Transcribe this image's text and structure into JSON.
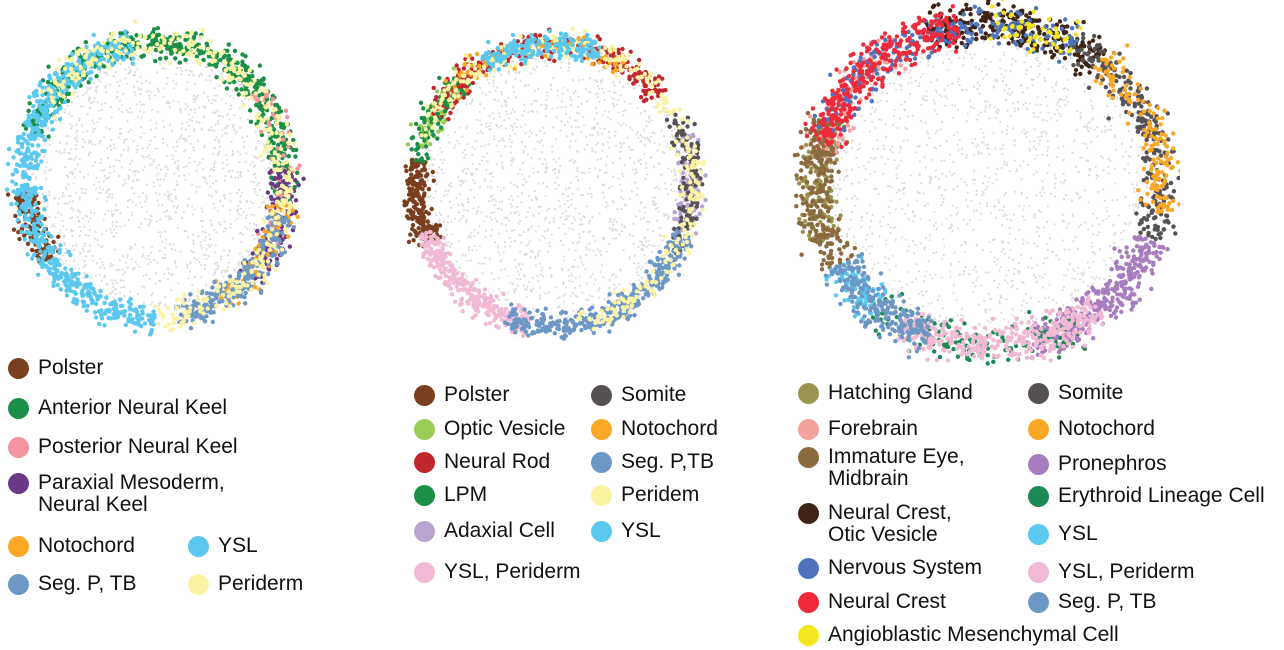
{
  "chart_data": [
    {
      "type": "scatter",
      "title": "",
      "xlabel": "",
      "ylabel": "",
      "legend_position": "below",
      "background_color": "#dcdcdc",
      "legend": [
        {
          "label": "Polster",
          "color": "#7a3f1e"
        },
        {
          "label": "Anterior Neural Keel",
          "color": "#1b8f45"
        },
        {
          "label": "Posterior Neural Keel",
          "color": "#f3949f"
        },
        {
          "label": "Paraxial Mesoderm,\nNeural Keel",
          "color": "#6a3a86"
        },
        {
          "label": "Notochord",
          "color": "#f9a825"
        },
        {
          "label": "YSL",
          "color": "#5ac8ef"
        },
        {
          "label": "Seg. P, TB",
          "color": "#6d98c6"
        },
        {
          "label": "Periderm",
          "color": "#fbf3a4"
        }
      ],
      "clusters": [
        {
          "label": "Polster",
          "arc": [
            145,
            175
          ],
          "weight": 0.5
        },
        {
          "label": "Anterior Neural Keel",
          "arc": [
            -160,
            10
          ],
          "weight": 2.2
        },
        {
          "label": "Posterior Neural Keel",
          "arc": [
            -40,
            40
          ],
          "weight": 0.3
        },
        {
          "label": "Paraxial Mesoderm,\nNeural Keel",
          "arc": [
            -5,
            45
          ],
          "weight": 0.6
        },
        {
          "label": "Notochord",
          "arc": [
            10,
            60
          ],
          "weight": 0.3
        },
        {
          "label": "YSL",
          "arc": [
            90,
            260
          ],
          "weight": 2.6
        },
        {
          "label": "Seg. P, TB",
          "arc": [
            15,
            80
          ],
          "weight": 0.9
        },
        {
          "label": "Periderm",
          "arc": [
            -150,
            90
          ],
          "weight": 1.4
        }
      ]
    },
    {
      "type": "scatter",
      "title": "",
      "xlabel": "",
      "ylabel": "",
      "legend_position": "below",
      "background_color": "#dcdcdc",
      "legend": [
        {
          "label": "Polster",
          "color": "#7a3f1e"
        },
        {
          "label": "Optic Vesicle",
          "color": "#9bcb57"
        },
        {
          "label": "Neural Rod",
          "color": "#c0272d"
        },
        {
          "label": "LPM",
          "color": "#1b8f45"
        },
        {
          "label": "Adaxial Cell",
          "color": "#b9a3d1"
        },
        {
          "label": "YSL, Periderm",
          "color": "#f1b9d3"
        },
        {
          "label": "Somite",
          "color": "#555155"
        },
        {
          "label": "Notochord",
          "color": "#f9a825"
        },
        {
          "label": "Seg. P,TB",
          "color": "#6d98c6"
        },
        {
          "label": "Peridem",
          "color": "#fbf3a4"
        },
        {
          "label": "YSL",
          "color": "#5ac8ef"
        }
      ],
      "clusters": [
        {
          "label": "Polster",
          "arc": [
            155,
            190
          ],
          "weight": 0.8
        },
        {
          "label": "Optic Vesicle",
          "arc": [
            195,
            230
          ],
          "weight": 0.3
        },
        {
          "label": "Neural Rod",
          "arc": [
            -150,
            -40
          ],
          "weight": 1.4
        },
        {
          "label": "LPM",
          "arc": [
            -170,
            -130
          ],
          "weight": 0.3
        },
        {
          "label": "Adaxial Cell",
          "arc": [
            -20,
            20
          ],
          "weight": 0.4
        },
        {
          "label": "YSL, Periderm",
          "arc": [
            100,
            160
          ],
          "weight": 1.1
        },
        {
          "label": "Somite",
          "arc": [
            -30,
            30
          ],
          "weight": 0.5
        },
        {
          "label": "Notochord",
          "arc": [
            -140,
            -60
          ],
          "weight": 0.4
        },
        {
          "label": "Seg. P,TB",
          "arc": [
            20,
            110
          ],
          "weight": 1.4
        },
        {
          "label": "Peridem",
          "arc": [
            -160,
            80
          ],
          "weight": 1.3
        },
        {
          "label": "YSL",
          "arc": [
            -120,
            -70
          ],
          "weight": 0.7
        }
      ]
    },
    {
      "type": "scatter",
      "title": "",
      "xlabel": "",
      "ylabel": "",
      "legend_position": "below",
      "background_color": "#dcdcdc",
      "legend": [
        {
          "label": "Hatching Gland",
          "color": "#9a9451"
        },
        {
          "label": "Forebrain",
          "color": "#f2a19d"
        },
        {
          "label": "Immature Eye,\nMidbrain",
          "color": "#8b6a3e"
        },
        {
          "label": "Neural Crest,\nOtic Vesicle",
          "color": "#3e2416"
        },
        {
          "label": "Nervous System",
          "color": "#4f74bb"
        },
        {
          "label": "Neural Crest",
          "color": "#ee2a3b"
        },
        {
          "label": "Angioblastic Mesenchymal Cell",
          "color": "#f4e51d"
        },
        {
          "label": "Somite",
          "color": "#555155"
        },
        {
          "label": "Notochord",
          "color": "#f9a825"
        },
        {
          "label": "Pronephros",
          "color": "#a77dbf"
        },
        {
          "label": "Erythroid Lineage Cell",
          "color": "#1b8a55"
        },
        {
          "label": "YSL",
          "color": "#5ac8ef"
        },
        {
          "label": "YSL, Periderm",
          "color": "#f1b9d3"
        },
        {
          "label": "Seg. P, TB",
          "color": "#6d98c6"
        }
      ],
      "clusters": [
        {
          "label": "Hatching Gland",
          "arc": [
            160,
            200
          ],
          "weight": 0.6
        },
        {
          "label": "Forebrain",
          "arc": [
            -170,
            -120
          ],
          "weight": 0.5
        },
        {
          "label": "Immature Eye,\nMidbrain",
          "arc": [
            150,
            205
          ],
          "weight": 1.0
        },
        {
          "label": "Neural Crest,\nOtic Vesicle",
          "arc": [
            -110,
            -50
          ],
          "weight": 1.2
        },
        {
          "label": "Nervous System",
          "arc": [
            -160,
            -60
          ],
          "weight": 0.9
        },
        {
          "label": "Neural Crest",
          "arc": [
            -165,
            -100
          ],
          "weight": 1.3
        },
        {
          "label": "Angioblastic Mesenchymal Cell",
          "arc": [
            -90,
            -60
          ],
          "weight": 0.2
        },
        {
          "label": "Somite",
          "arc": [
            -60,
            20
          ],
          "weight": 1.0
        },
        {
          "label": "Notochord",
          "arc": [
            -50,
            10
          ],
          "weight": 0.6
        },
        {
          "label": "Pronephros",
          "arc": [
            20,
            75
          ],
          "weight": 1.3
        },
        {
          "label": "Erythroid Lineage Cell",
          "arc": [
            60,
            130
          ],
          "weight": 0.6
        },
        {
          "label": "YSL",
          "arc": [
            130,
            150
          ],
          "weight": 0.4
        },
        {
          "label": "YSL, Periderm",
          "arc": [
            50,
            120
          ],
          "weight": 1.4
        },
        {
          "label": "Seg. P, TB",
          "arc": [
            110,
            150
          ],
          "weight": 0.9
        }
      ]
    }
  ]
}
